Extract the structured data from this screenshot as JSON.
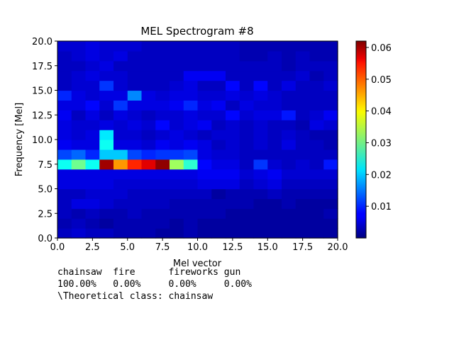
{
  "chart_data": {
    "type": "heatmap",
    "title": "MEL Spectrogram #8",
    "xlabel": "Mel vector",
    "ylabel": "Frequency [Mel]",
    "xlim": [
      0,
      20
    ],
    "ylim": [
      0,
      20
    ],
    "x_ticks": [
      "0.0",
      "2.5",
      "5.0",
      "7.5",
      "10.0",
      "12.5",
      "15.0",
      "17.5",
      "20.0"
    ],
    "y_ticks": [
      "0.0",
      "2.5",
      "5.0",
      "7.5",
      "10.0",
      "12.5",
      "15.0",
      "17.5",
      "20.0"
    ],
    "colormap": "jet",
    "colorbar": {
      "min": 0.0,
      "max": 0.062,
      "ticks": [
        "0.01",
        "0.02",
        "0.03",
        "0.04",
        "0.05",
        "0.06"
      ]
    },
    "values": [
      [
        0.004,
        0.005,
        0.004,
        0.004,
        0.003,
        0.003,
        0.003,
        0.002,
        0.002,
        0.003,
        0.002,
        0.002,
        0.002,
        0.002,
        0.002,
        0.002,
        0.002,
        0.002,
        0.002,
        0.002
      ],
      [
        0.003,
        0.004,
        0.003,
        0.002,
        0.003,
        0.003,
        0.003,
        0.003,
        0.002,
        0.003,
        0.002,
        0.002,
        0.002,
        0.002,
        0.002,
        0.002,
        0.002,
        0.002,
        0.002,
        0.002
      ],
      [
        0.004,
        0.003,
        0.004,
        0.003,
        0.003,
        0.004,
        0.003,
        0.003,
        0.003,
        0.003,
        0.003,
        0.003,
        0.002,
        0.002,
        0.002,
        0.002,
        0.002,
        0.002,
        0.002,
        0.003
      ],
      [
        0.004,
        0.006,
        0.006,
        0.005,
        0.004,
        0.004,
        0.004,
        0.004,
        0.003,
        0.003,
        0.003,
        0.003,
        0.003,
        0.003,
        0.002,
        0.002,
        0.003,
        0.002,
        0.002,
        0.002
      ],
      [
        0.004,
        0.004,
        0.005,
        0.005,
        0.005,
        0.004,
        0.004,
        0.004,
        0.004,
        0.004,
        0.004,
        0.002,
        0.003,
        0.003,
        0.003,
        0.004,
        0.003,
        0.003,
        0.003,
        0.003
      ],
      [
        0.006,
        0.006,
        0.006,
        0.006,
        0.005,
        0.005,
        0.005,
        0.005,
        0.005,
        0.005,
        0.006,
        0.006,
        0.006,
        0.004,
        0.005,
        0.006,
        0.004,
        0.004,
        0.004,
        0.004
      ],
      [
        0.006,
        0.006,
        0.006,
        0.006,
        0.006,
        0.006,
        0.006,
        0.006,
        0.006,
        0.006,
        0.007,
        0.007,
        0.007,
        0.005,
        0.006,
        0.007,
        0.005,
        0.005,
        0.005,
        0.005
      ],
      [
        0.024,
        0.03,
        0.024,
        0.06,
        0.045,
        0.052,
        0.056,
        0.061,
        0.033,
        0.026,
        0.008,
        0.006,
        0.006,
        0.004,
        0.011,
        0.005,
        0.004,
        0.005,
        0.004,
        0.009
      ],
      [
        0.012,
        0.014,
        0.01,
        0.02,
        0.02,
        0.012,
        0.01,
        0.011,
        0.011,
        0.012,
        0.006,
        0.005,
        0.005,
        0.004,
        0.004,
        0.004,
        0.004,
        0.004,
        0.004,
        0.004
      ],
      [
        0.007,
        0.006,
        0.006,
        0.024,
        0.006,
        0.006,
        0.005,
        0.007,
        0.006,
        0.007,
        0.006,
        0.004,
        0.005,
        0.004,
        0.005,
        0.004,
        0.006,
        0.004,
        0.004,
        0.003
      ],
      [
        0.006,
        0.005,
        0.006,
        0.022,
        0.005,
        0.005,
        0.004,
        0.005,
        0.006,
        0.005,
        0.004,
        0.005,
        0.005,
        0.004,
        0.005,
        0.004,
        0.005,
        0.004,
        0.003,
        0.003
      ],
      [
        0.006,
        0.005,
        0.005,
        0.006,
        0.005,
        0.006,
        0.005,
        0.008,
        0.005,
        0.006,
        0.007,
        0.004,
        0.005,
        0.004,
        0.005,
        0.004,
        0.004,
        0.003,
        0.006,
        0.005
      ],
      [
        0.007,
        0.004,
        0.006,
        0.004,
        0.006,
        0.005,
        0.004,
        0.005,
        0.005,
        0.006,
        0.005,
        0.005,
        0.008,
        0.005,
        0.006,
        0.006,
        0.009,
        0.004,
        0.005,
        0.007
      ],
      [
        0.006,
        0.006,
        0.008,
        0.005,
        0.011,
        0.006,
        0.006,
        0.006,
        0.007,
        0.01,
        0.006,
        0.007,
        0.004,
        0.006,
        0.005,
        0.005,
        0.004,
        0.004,
        0.004,
        0.004
      ],
      [
        0.01,
        0.006,
        0.005,
        0.006,
        0.006,
        0.016,
        0.006,
        0.005,
        0.006,
        0.006,
        0.005,
        0.005,
        0.006,
        0.005,
        0.006,
        0.005,
        0.004,
        0.004,
        0.004,
        0.004
      ],
      [
        0.004,
        0.005,
        0.005,
        0.011,
        0.005,
        0.004,
        0.004,
        0.004,
        0.005,
        0.006,
        0.004,
        0.004,
        0.008,
        0.004,
        0.008,
        0.004,
        0.006,
        0.004,
        0.004,
        0.005
      ],
      [
        0.004,
        0.005,
        0.006,
        0.005,
        0.005,
        0.004,
        0.004,
        0.004,
        0.004,
        0.007,
        0.007,
        0.007,
        0.004,
        0.004,
        0.004,
        0.004,
        0.004,
        0.005,
        0.003,
        0.004
      ],
      [
        0.004,
        0.004,
        0.005,
        0.006,
        0.004,
        0.004,
        0.004,
        0.004,
        0.004,
        0.004,
        0.004,
        0.004,
        0.004,
        0.004,
        0.004,
        0.004,
        0.003,
        0.004,
        0.004,
        0.004
      ],
      [
        0.004,
        0.005,
        0.006,
        0.005,
        0.006,
        0.004,
        0.004,
        0.004,
        0.004,
        0.004,
        0.004,
        0.004,
        0.004,
        0.003,
        0.003,
        0.004,
        0.003,
        0.004,
        0.003,
        0.003
      ],
      [
        0.005,
        0.005,
        0.006,
        0.005,
        0.005,
        0.005,
        0.004,
        0.004,
        0.004,
        0.004,
        0.004,
        0.004,
        0.004,
        0.003,
        0.003,
        0.003,
        0.003,
        0.003,
        0.003,
        0.003
      ]
    ]
  },
  "caption": {
    "line1": "chainsaw  fire      fireworks gun",
    "line2": "100.00%   0.00%     0.00%     0.00%",
    "line3": "\\Theoretical class: chainsaw"
  }
}
